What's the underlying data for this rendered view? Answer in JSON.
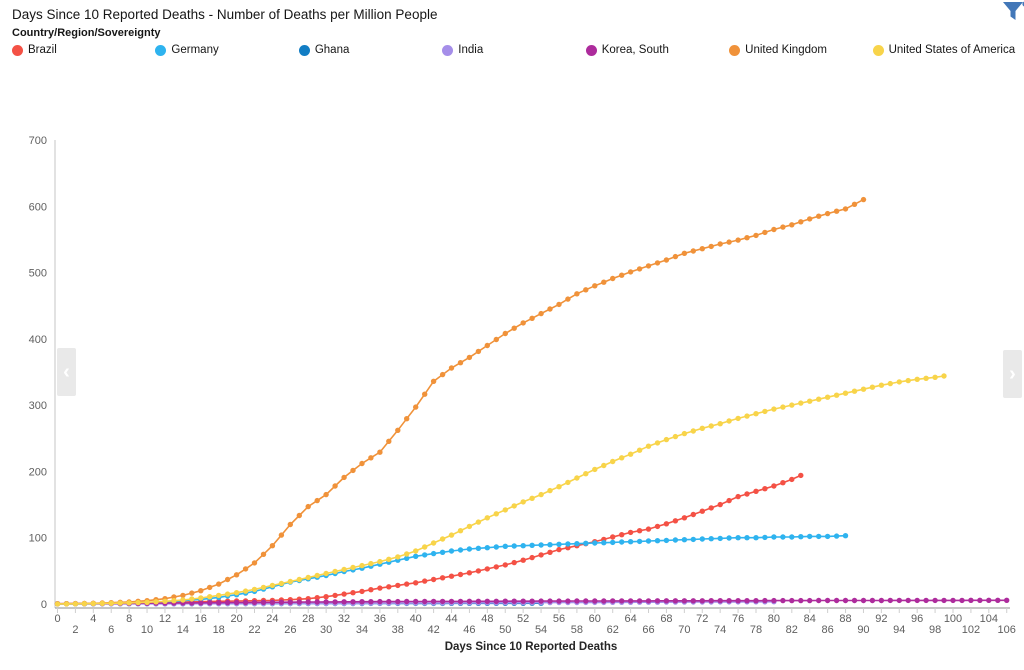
{
  "header": {
    "title": "Days Since 10 Reported Deaths - Number of Deaths per Million People",
    "filter_icon_color": "#4277b8"
  },
  "legend": {
    "title": "Country/Region/Sovereignty"
  },
  "controls": {
    "scroll_left_icon": "‹",
    "scroll_right_icon": "›"
  },
  "chart_data": {
    "type": "line",
    "title": "Days Since 10 Reported Deaths - Number of Deaths per Million People",
    "xlabel": "Days Since 10 Reported Deaths",
    "ylabel": "",
    "xlim": [
      0,
      106
    ],
    "ylim": [
      0,
      700
    ],
    "x_tick_step": 2,
    "y_ticks": [
      0,
      100,
      200,
      300,
      400,
      500,
      600,
      700
    ],
    "grid": false,
    "legend_position": "top",
    "legend_title": "Country/Region/Sovereignty",
    "series": [
      {
        "name": "Brazil",
        "color": "#f45145",
        "points": [
          [
            0,
            0.3
          ],
          [
            2,
            0.5
          ],
          [
            4,
            0.8
          ],
          [
            6,
            1
          ],
          [
            8,
            1.5
          ],
          [
            10,
            2
          ],
          [
            12,
            2.5
          ],
          [
            14,
            3
          ],
          [
            16,
            3.5
          ],
          [
            18,
            4
          ],
          [
            20,
            4.5
          ],
          [
            22,
            5
          ],
          [
            24,
            5.5
          ],
          [
            26,
            6.5
          ],
          [
            28,
            8
          ],
          [
            30,
            11
          ],
          [
            32,
            15
          ],
          [
            34,
            19
          ],
          [
            36,
            24
          ],
          [
            38,
            28
          ],
          [
            40,
            32
          ],
          [
            42,
            37
          ],
          [
            44,
            42
          ],
          [
            46,
            47
          ],
          [
            48,
            53
          ],
          [
            50,
            59
          ],
          [
            52,
            66
          ],
          [
            54,
            74
          ],
          [
            56,
            82
          ],
          [
            58,
            88
          ],
          [
            60,
            94
          ],
          [
            62,
            101
          ],
          [
            64,
            108
          ],
          [
            66,
            113
          ],
          [
            68,
            121
          ],
          [
            70,
            130
          ],
          [
            72,
            140
          ],
          [
            74,
            150
          ],
          [
            76,
            162
          ],
          [
            78,
            170
          ],
          [
            80,
            178
          ],
          [
            82,
            188
          ],
          [
            83,
            194
          ]
        ]
      },
      {
        "name": "Germany",
        "color": "#2eb3ef",
        "points": [
          [
            0,
            0.2
          ],
          [
            2,
            0.3
          ],
          [
            4,
            0.5
          ],
          [
            6,
            0.8
          ],
          [
            8,
            1.2
          ],
          [
            10,
            2
          ],
          [
            12,
            3
          ],
          [
            14,
            5
          ],
          [
            16,
            7
          ],
          [
            18,
            10
          ],
          [
            20,
            14
          ],
          [
            22,
            19
          ],
          [
            24,
            26
          ],
          [
            26,
            33
          ],
          [
            28,
            38
          ],
          [
            30,
            43
          ],
          [
            32,
            49
          ],
          [
            34,
            54
          ],
          [
            36,
            60
          ],
          [
            38,
            66
          ],
          [
            40,
            72
          ],
          [
            42,
            76
          ],
          [
            44,
            80
          ],
          [
            46,
            83
          ],
          [
            48,
            85
          ],
          [
            50,
            87
          ],
          [
            52,
            88
          ],
          [
            54,
            89
          ],
          [
            56,
            90
          ],
          [
            58,
            91
          ],
          [
            60,
            92
          ],
          [
            62,
            93
          ],
          [
            64,
            94
          ],
          [
            66,
            95
          ],
          [
            68,
            96
          ],
          [
            70,
            97
          ],
          [
            72,
            98
          ],
          [
            74,
            99
          ],
          [
            76,
            100
          ],
          [
            78,
            100
          ],
          [
            80,
            101
          ],
          [
            82,
            101
          ],
          [
            84,
            102
          ],
          [
            86,
            102
          ],
          [
            88,
            103
          ]
        ]
      },
      {
        "name": "Ghana",
        "color": "#117dc4",
        "points": [
          [
            0,
            0.3
          ],
          [
            6,
            0.4
          ],
          [
            12,
            0.5
          ],
          [
            18,
            0.55
          ],
          [
            24,
            0.65
          ],
          [
            30,
            0.75
          ],
          [
            36,
            0.85
          ],
          [
            42,
            0.95
          ],
          [
            48,
            1.05
          ],
          [
            54,
            1.15
          ]
        ]
      },
      {
        "name": "India",
        "color": "#a58ee9",
        "points": [
          [
            0,
            0.1
          ],
          [
            8,
            0.25
          ],
          [
            16,
            0.45
          ],
          [
            24,
            0.7
          ],
          [
            32,
            1.05
          ],
          [
            40,
            1.4
          ],
          [
            48,
            1.8
          ],
          [
            56,
            2.2
          ],
          [
            64,
            2.6
          ],
          [
            72,
            3.0
          ],
          [
            80,
            3.4
          ]
        ]
      },
      {
        "name": "Korea, South",
        "color": "#ad2b9c",
        "points": [
          [
            0,
            0.4
          ],
          [
            8,
            1.0
          ],
          [
            16,
            1.8
          ],
          [
            24,
            2.6
          ],
          [
            32,
            3.3
          ],
          [
            40,
            3.8
          ],
          [
            48,
            4.1
          ],
          [
            56,
            4.4
          ],
          [
            64,
            4.7
          ],
          [
            72,
            4.9
          ],
          [
            80,
            5.1
          ],
          [
            88,
            5.3
          ],
          [
            96,
            5.4
          ],
          [
            106,
            5.6
          ]
        ]
      },
      {
        "name": "United Kingdom",
        "color": "#f0923a",
        "points": [
          [
            0,
            0.3
          ],
          [
            2,
            0.6
          ],
          [
            4,
            1
          ],
          [
            6,
            2
          ],
          [
            8,
            3
          ],
          [
            10,
            5
          ],
          [
            12,
            8
          ],
          [
            14,
            13
          ],
          [
            16,
            20
          ],
          [
            18,
            30
          ],
          [
            20,
            44
          ],
          [
            22,
            62
          ],
          [
            24,
            88
          ],
          [
            26,
            120
          ],
          [
            28,
            147
          ],
          [
            30,
            165
          ],
          [
            32,
            191
          ],
          [
            34,
            212
          ],
          [
            36,
            229
          ],
          [
            38,
            262
          ],
          [
            40,
            297
          ],
          [
            42,
            336
          ],
          [
            44,
            356
          ],
          [
            46,
            372
          ],
          [
            48,
            390
          ],
          [
            50,
            408
          ],
          [
            52,
            424
          ],
          [
            54,
            438
          ],
          [
            56,
            452
          ],
          [
            58,
            468
          ],
          [
            60,
            480
          ],
          [
            62,
            491
          ],
          [
            64,
            501
          ],
          [
            66,
            510
          ],
          [
            68,
            519
          ],
          [
            70,
            529
          ],
          [
            72,
            536
          ],
          [
            74,
            543
          ],
          [
            76,
            549
          ],
          [
            78,
            556
          ],
          [
            80,
            565
          ],
          [
            82,
            572
          ],
          [
            84,
            581
          ],
          [
            86,
            589
          ],
          [
            88,
            596
          ],
          [
            90,
            610
          ]
        ]
      },
      {
        "name": "United States of America",
        "color": "#f8d44a",
        "points": [
          [
            0,
            0.1
          ],
          [
            2,
            0.3
          ],
          [
            4,
            0.6
          ],
          [
            6,
            1
          ],
          [
            8,
            1.6
          ],
          [
            10,
            2.5
          ],
          [
            12,
            4
          ],
          [
            14,
            6
          ],
          [
            16,
            9
          ],
          [
            18,
            13
          ],
          [
            20,
            17
          ],
          [
            22,
            22
          ],
          [
            24,
            28
          ],
          [
            26,
            34
          ],
          [
            28,
            40
          ],
          [
            30,
            46
          ],
          [
            32,
            52
          ],
          [
            34,
            58
          ],
          [
            36,
            64
          ],
          [
            38,
            71
          ],
          [
            40,
            80
          ],
          [
            42,
            92
          ],
          [
            44,
            104
          ],
          [
            46,
            117
          ],
          [
            48,
            130
          ],
          [
            50,
            142
          ],
          [
            52,
            154
          ],
          [
            54,
            165
          ],
          [
            56,
            177
          ],
          [
            58,
            190
          ],
          [
            60,
            203
          ],
          [
            62,
            215
          ],
          [
            64,
            226
          ],
          [
            66,
            238
          ],
          [
            68,
            248
          ],
          [
            70,
            257
          ],
          [
            72,
            265
          ],
          [
            74,
            272
          ],
          [
            76,
            280
          ],
          [
            78,
            287
          ],
          [
            80,
            294
          ],
          [
            82,
            300
          ],
          [
            84,
            306
          ],
          [
            86,
            312
          ],
          [
            88,
            318
          ],
          [
            90,
            324
          ],
          [
            92,
            330
          ],
          [
            94,
            335
          ],
          [
            96,
            339
          ],
          [
            98,
            342
          ],
          [
            99,
            344
          ]
        ]
      }
    ]
  }
}
